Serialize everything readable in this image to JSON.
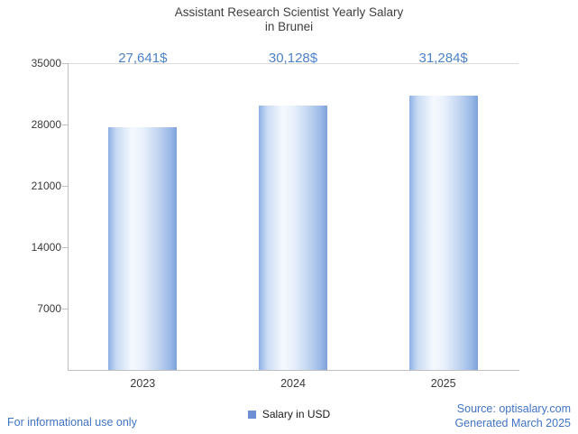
{
  "title": {
    "line1": "Assistant Research Scientist Yearly Salary",
    "line2": "in Brunei"
  },
  "chart_data": {
    "type": "bar",
    "title": "Assistant Research Scientist Yearly Salary in Brunei",
    "categories": [
      "2023",
      "2024",
      "2025"
    ],
    "values": [
      27641,
      30128,
      31284
    ],
    "value_labels": [
      "27,641$",
      "30,128$",
      "31,284$"
    ],
    "xlabel": "",
    "ylabel": "",
    "ylim": [
      0,
      35000
    ],
    "yticks": [
      7000,
      14000,
      21000,
      28000,
      35000
    ],
    "grid": "top line only",
    "legend": [
      "Salary in USD"
    ],
    "legend_position": "bottom-center",
    "bar_color": "#88abdf"
  },
  "legend": {
    "label": "Salary in USD"
  },
  "footer": {
    "disclaimer": "For informational use only",
    "source": "Source: optisalary.com",
    "generated": "Generated March 2025"
  },
  "colors": {
    "accent_blue": "#4d82c6",
    "footer_blue": "#4173c4",
    "legend_square": "#6d8fd4",
    "title_color": "#3f3f3f"
  }
}
